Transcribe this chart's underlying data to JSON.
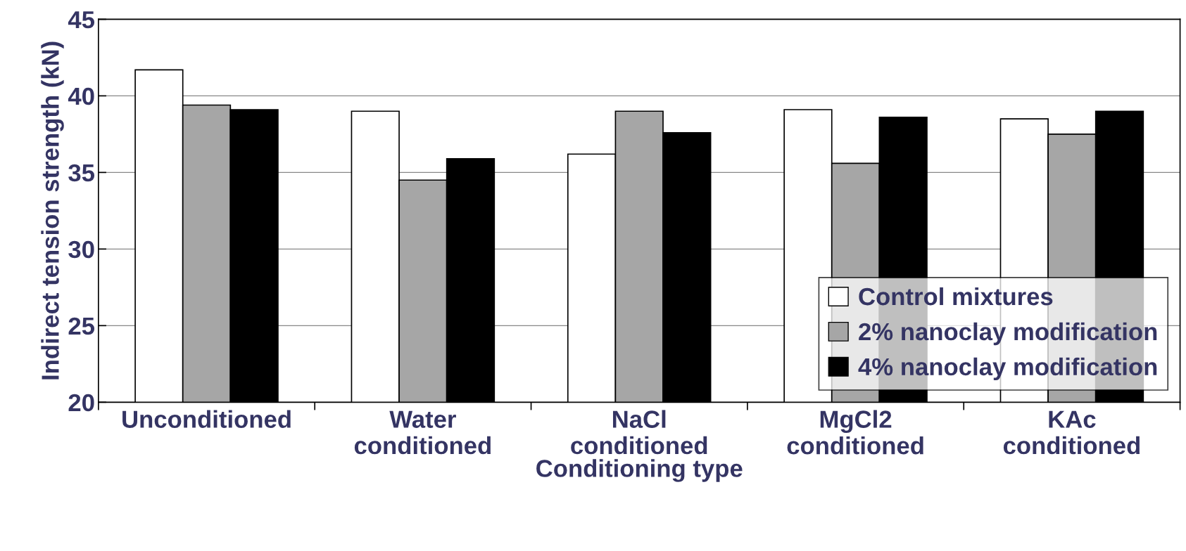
{
  "chart_data": {
    "type": "bar",
    "xlabel": "Conditioning type",
    "ylabel": "Indirect tension strength (kN)",
    "categories": [
      "Unconditioned",
      "Water\nconditioned",
      "NaCl\nconditioned",
      "MgCl2\nconditioned",
      "KAc\nconditioned"
    ],
    "series": [
      {
        "name": "Control mixtures",
        "color": "#ffffff",
        "values": [
          41.7,
          39.0,
          36.2,
          39.1,
          38.5
        ]
      },
      {
        "name": "2% nanoclay modification",
        "color": "#a6a6a6",
        "values": [
          39.4,
          34.5,
          39.0,
          35.6,
          37.5
        ]
      },
      {
        "name": "4% nanoclay modification",
        "color": "#000000",
        "values": [
          39.1,
          35.9,
          37.6,
          38.6,
          39.0
        ]
      }
    ],
    "ylim": [
      20,
      45
    ],
    "yticks": [
      20,
      25,
      30,
      35,
      40,
      45
    ],
    "grid": "y",
    "legend": "bottom right"
  }
}
